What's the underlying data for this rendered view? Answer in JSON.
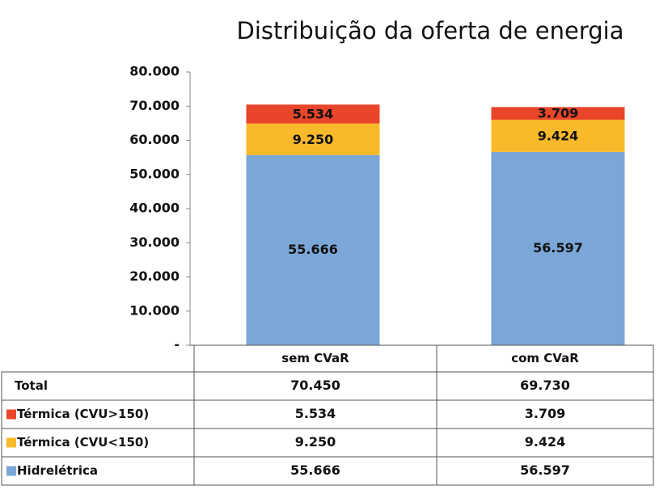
{
  "chart_data": {
    "type": "stacked_bar",
    "title": "Distribuição da oferta  de energia",
    "categories": [
      "sem CVaR",
      "com CVaR"
    ],
    "series": [
      {
        "name": "Hidrelétrica",
        "color": "#7ba7d8",
        "values": [
          55666,
          56597
        ],
        "value_labels": [
          "55.666",
          "56.597"
        ]
      },
      {
        "name": "Térmica (CVU<150)",
        "color": "#f8b92a",
        "values": [
          9250,
          9424
        ],
        "value_labels": [
          "9.250",
          "9.424"
        ]
      },
      {
        "name": "Térmica (CVU>150)",
        "color": "#e8452a",
        "values": [
          5534,
          3709
        ],
        "value_labels": [
          "5.534",
          "3.709"
        ]
      }
    ],
    "total": {
      "name": "Total",
      "values": [
        "70.450",
        "69.730"
      ]
    },
    "ylim": [
      0,
      80000
    ],
    "yticks": [
      {
        "value": 0,
        "label": "-"
      },
      {
        "value": 10000,
        "label": "10.000"
      },
      {
        "value": 20000,
        "label": "20.000"
      },
      {
        "value": 30000,
        "label": "30.000"
      },
      {
        "value": 40000,
        "label": "40.000"
      },
      {
        "value": 50000,
        "label": "50.000"
      },
      {
        "value": 60000,
        "label": "60.000"
      },
      {
        "value": 70000,
        "label": "70.000"
      },
      {
        "value": 80000,
        "label": "80.000"
      }
    ],
    "grid": false
  }
}
